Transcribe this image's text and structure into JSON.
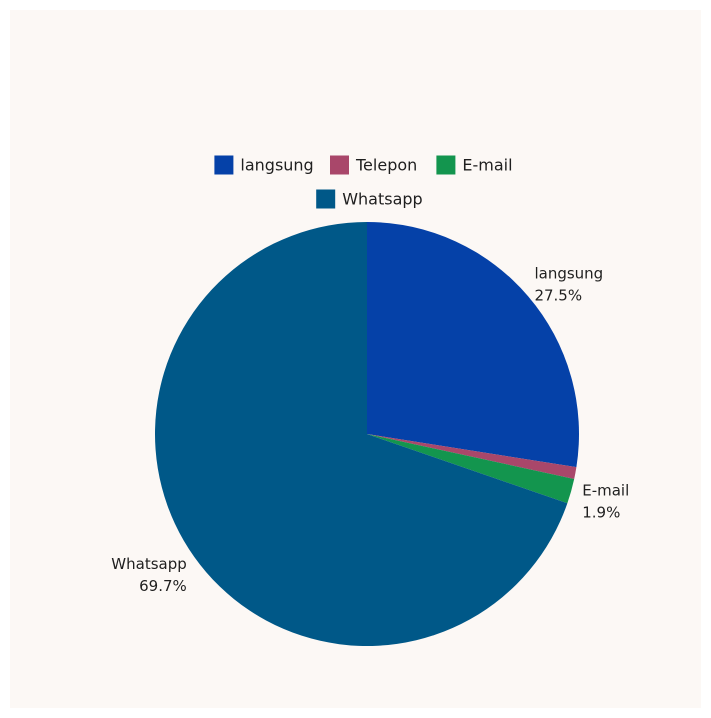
{
  "chart_data": {
    "type": "pie",
    "title": "",
    "slices": [
      {
        "label": "langsung",
        "value": 27.5,
        "color": "#0541a8",
        "show_label": true,
        "display": "27.5%"
      },
      {
        "label": "Telepon",
        "value": 0.9,
        "color": "#a9476a",
        "show_label": false,
        "display": ""
      },
      {
        "label": "E-mail",
        "value": 1.9,
        "color": "#13954e",
        "show_label": true,
        "display": "1.9%"
      },
      {
        "label": "Whatsapp",
        "value": 69.7,
        "color": "#005888",
        "show_label": true,
        "display": "69.7%"
      }
    ],
    "legend": {
      "placement": "top",
      "rows": [
        [
          "langsung",
          "Telepon",
          "E-mail"
        ],
        [
          "Whatsapp"
        ]
      ]
    },
    "start_angle": "12 o'clock",
    "direction": "clockwise"
  }
}
